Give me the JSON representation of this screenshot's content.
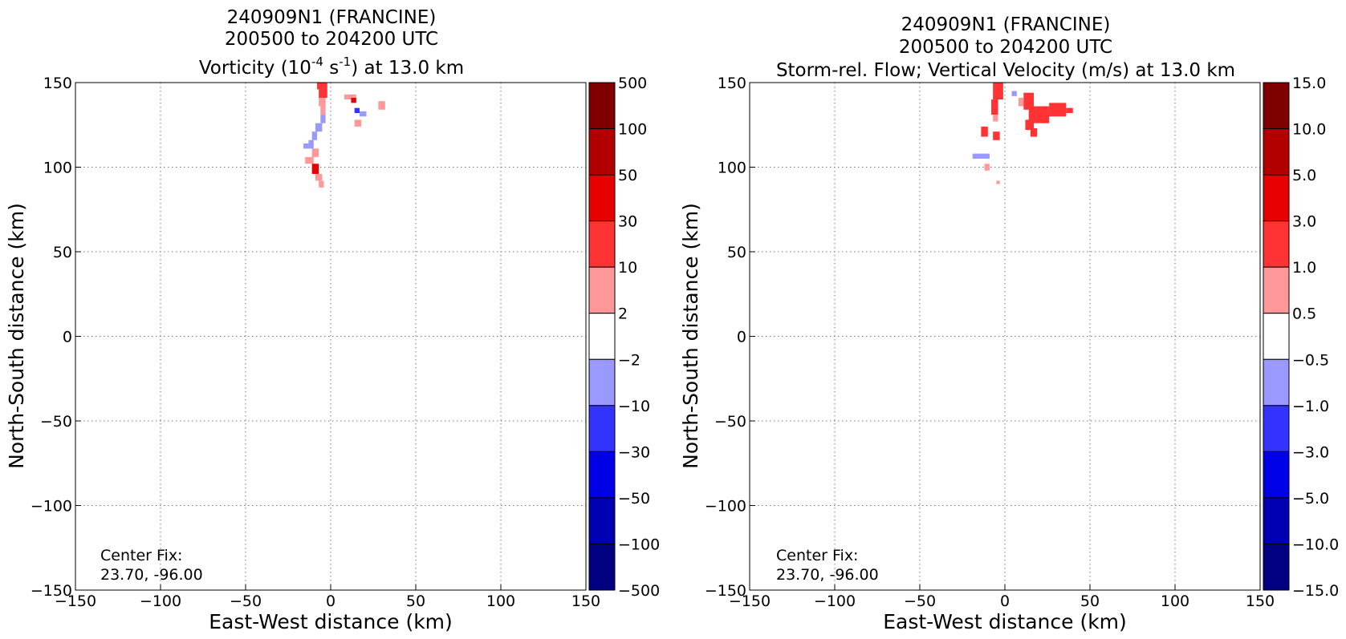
{
  "chart_data": [
    {
      "type": "heatmap",
      "title_lines": [
        "240909N1 (FRANCINE)",
        "200500 to 204200 UTC"
      ],
      "title_line3": {
        "pre": "Vorticity (10",
        "sup1": "-4",
        "mid": " s",
        "sup2": "-1",
        "post": ") at 13.0 km"
      },
      "xlabel": "East-West distance (km)",
      "ylabel": "North-South distance (km)",
      "xlim": [
        -150,
        150
      ],
      "ylim": [
        -150,
        150
      ],
      "xticks": [
        -150,
        -100,
        -50,
        0,
        50,
        100,
        150
      ],
      "yticks": [
        -150,
        -100,
        -50,
        0,
        50,
        100,
        150
      ],
      "xtick_labels": [
        "−150",
        "−100",
        "−50",
        "0",
        "50",
        "100",
        "150"
      ],
      "ytick_labels": [
        "−150",
        "−100",
        "−50",
        "0",
        "50",
        "100",
        "150"
      ],
      "grid": true,
      "annotation": [
        "Center Fix:",
        "23.70, -96.00"
      ],
      "colorbar": {
        "labels": [
          "500",
          "100",
          "50",
          "30",
          "10",
          "2",
          "−2",
          "−10",
          "−30",
          "−50",
          "−100",
          "−500"
        ],
        "colors": [
          "#800000",
          "#b20000",
          "#e60000",
          "#ff3333",
          "#ff9999",
          "#ffffff",
          "#9999ff",
          "#3333ff",
          "#0000e6",
          "#0000b2",
          "#000080"
        ]
      },
      "cells": [
        [
          -8,
          146,
          6,
          4,
          "#ff3333"
        ],
        [
          -7,
          141,
          5,
          5,
          "#ff3333"
        ],
        [
          -7,
          136,
          4,
          5,
          "#ff9999"
        ],
        [
          -6,
          131,
          3,
          5,
          "#ff9999"
        ],
        [
          -6,
          126,
          3,
          5,
          "#9999ff"
        ],
        [
          -9,
          121,
          4,
          5,
          "#9999ff"
        ],
        [
          -11,
          116,
          3,
          5,
          "#9999ff"
        ],
        [
          -13,
          111,
          3,
          5,
          "#9999ff"
        ],
        [
          -11,
          106,
          4,
          5,
          "#ff9999"
        ],
        [
          -15,
          102,
          5,
          4,
          "#ff9999"
        ],
        [
          -11,
          96,
          4,
          6,
          "#e60000"
        ],
        [
          -9,
          92,
          4,
          4,
          "#ff9999"
        ],
        [
          -7,
          88,
          3,
          4,
          "#ff9999"
        ],
        [
          -16,
          111,
          3,
          3,
          "#9999ff"
        ],
        [
          8,
          140,
          7,
          3,
          "#ff9999"
        ],
        [
          12,
          138,
          3,
          3,
          "#e60000"
        ],
        [
          14,
          132,
          3,
          3,
          "#3333ff"
        ],
        [
          17,
          130,
          4,
          3,
          "#9999ff"
        ],
        [
          14,
          124,
          4,
          4,
          "#ff9999"
        ],
        [
          28,
          134,
          4,
          5,
          "#ff9999"
        ]
      ]
    },
    {
      "type": "heatmap",
      "title_lines": [
        "240909N1 (FRANCINE)",
        "200500 to 204200 UTC",
        "Storm-rel. Flow; Vertical Velocity (m/s) at 13.0 km"
      ],
      "xlabel": "East-West distance (km)",
      "ylabel": "North-South distance (km)",
      "xlim": [
        -150,
        150
      ],
      "ylim": [
        -150,
        150
      ],
      "xticks": [
        -150,
        -100,
        -50,
        0,
        50,
        100,
        150
      ],
      "yticks": [
        -150,
        -100,
        -50,
        0,
        50,
        100,
        150
      ],
      "xtick_labels": [
        "−150",
        "−100",
        "−50",
        "0",
        "50",
        "100",
        "150"
      ],
      "ytick_labels": [
        "−150",
        "−100",
        "−50",
        "0",
        "50",
        "100",
        "150"
      ],
      "grid": true,
      "annotation": [
        "Center Fix:",
        "23.70, -96.00"
      ],
      "colorbar": {
        "labels": [
          "15.0",
          "10.0",
          "5.0",
          "3.0",
          "1.0",
          "0.5",
          "−0.5",
          "−1.0",
          "−3.0",
          "−5.0",
          "−10.0",
          "−15.0"
        ],
        "colors": [
          "#800000",
          "#b20000",
          "#e60000",
          "#ff3333",
          "#ff9999",
          "#ffffff",
          "#9999ff",
          "#3333ff",
          "#0000e6",
          "#0000b2",
          "#000080"
        ]
      },
      "cells": [
        [
          -7,
          140,
          6,
          10,
          "#ff3333"
        ],
        [
          -8,
          131,
          4,
          9,
          "#ff3333"
        ],
        [
          -7,
          127,
          3,
          4,
          "#ff9999"
        ],
        [
          -14,
          118,
          4,
          6,
          "#ff3333"
        ],
        [
          -7,
          116,
          4,
          5,
          "#ff3333"
        ],
        [
          -19,
          105,
          10,
          3,
          "#9999ff"
        ],
        [
          -12,
          98,
          3,
          4,
          "#ff9999"
        ],
        [
          -5,
          90,
          2,
          2,
          "#ff9999"
        ],
        [
          4,
          142,
          3,
          3,
          "#9999ff"
        ],
        [
          8,
          136,
          3,
          5,
          "#ff9999"
        ],
        [
          11,
          134,
          6,
          10,
          "#ff3333"
        ],
        [
          14,
          126,
          12,
          10,
          "#ff3333"
        ],
        [
          26,
          130,
          10,
          8,
          "#ff3333"
        ],
        [
          12,
          122,
          5,
          6,
          "#ff3333"
        ],
        [
          15,
          118,
          4,
          5,
          "#ff3333"
        ],
        [
          36,
          132,
          4,
          3,
          "#ff3333"
        ]
      ]
    }
  ]
}
